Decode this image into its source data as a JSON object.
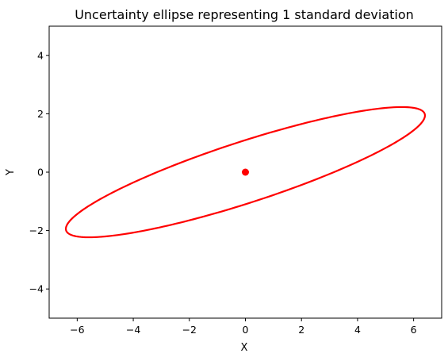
{
  "chart_data": {
    "type": "scatter",
    "title": "Uncertainty ellipse representing 1 standard deviation",
    "xlabel": "X",
    "ylabel": "Y",
    "xlim": [
      -7,
      7
    ],
    "ylim": [
      -5,
      5
    ],
    "xticks": [
      -6,
      -4,
      -2,
      0,
      2,
      4,
      6
    ],
    "yticks": [
      -4,
      -2,
      0,
      2,
      4
    ],
    "xtick_labels": [
      "−6",
      "−4",
      "−2",
      "0",
      "2",
      "4",
      "6"
    ],
    "ytick_labels": [
      "−4",
      "−2",
      "0",
      "2",
      "4"
    ],
    "grid": false,
    "points": [
      {
        "x": 0,
        "y": 0
      }
    ],
    "ellipse": {
      "center": [
        0,
        0
      ],
      "semi_major": 6.7,
      "semi_minor": 1.05,
      "angle_deg": 17.3
    },
    "colors": {
      "ellipse": "#ff0000",
      "point": "#ff0000"
    }
  }
}
